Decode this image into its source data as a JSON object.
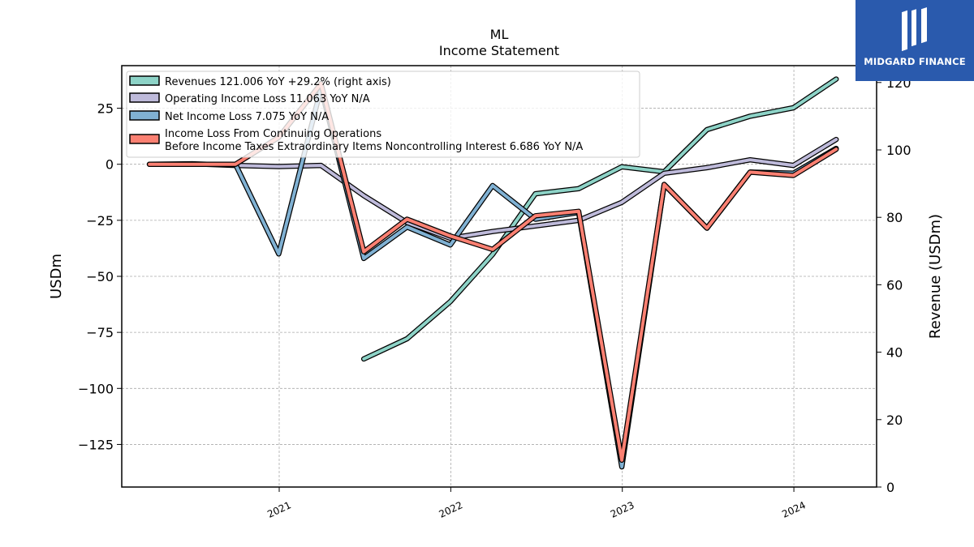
{
  "brand": {
    "name": "MIDGARD FINANCE"
  },
  "chart_data": {
    "type": "line",
    "title": "ML",
    "subtitle": "Income Statement",
    "ylabel": "USDm",
    "y2label": "Revenue (USDm)",
    "ylim": [
      -144,
      44
    ],
    "y2lim": [
      0,
      125
    ],
    "yticks": [
      25,
      0,
      -25,
      -50,
      -75,
      -100,
      -125
    ],
    "ytick_labels": [
      "25",
      "0",
      "−25",
      "−50",
      "−75",
      "−100",
      "−125"
    ],
    "y2ticks": [
      0,
      20,
      40,
      60,
      80,
      100,
      120
    ],
    "y2tick_labels": [
      "0",
      "20",
      "40",
      "60",
      "80",
      "100",
      "120"
    ],
    "xlim": [
      "2020-02-01",
      "2024-06-25"
    ],
    "xticks": [
      "2021-01-01",
      "2022-01-01",
      "2023-01-01",
      "2024-01-01"
    ],
    "xtick_labels": [
      "2021",
      "2022",
      "2023",
      "2024"
    ],
    "grid": true,
    "legend_position": "top-left",
    "series": [
      {
        "name": "Revenues  121.006 YoY +29.2% (right axis)",
        "axis": "right",
        "color": "#8dd3c7",
        "points": [
          [
            "2021-06-30",
            38
          ],
          [
            "2021-09-30",
            44
          ],
          [
            "2021-12-31",
            55
          ],
          [
            "2022-03-31",
            69
          ],
          [
            "2022-06-30",
            87
          ],
          [
            "2022-09-30",
            88.5
          ],
          [
            "2022-12-31",
            95
          ],
          [
            "2023-03-31",
            93.5
          ],
          [
            "2023-06-30",
            106
          ],
          [
            "2023-09-30",
            110
          ],
          [
            "2023-12-31",
            112.5
          ],
          [
            "2024-03-31",
            121
          ]
        ]
      },
      {
        "name": "Operating Income Loss  11.063 YoY N/A",
        "axis": "left",
        "color": "#bebada",
        "points": [
          [
            "2020-03-31",
            0
          ],
          [
            "2020-06-30",
            0.2
          ],
          [
            "2020-09-30",
            -0.5
          ],
          [
            "2020-12-31",
            -1
          ],
          [
            "2021-03-31",
            -0.5
          ],
          [
            "2021-06-30",
            -14
          ],
          [
            "2021-09-30",
            -26
          ],
          [
            "2021-12-31",
            -33
          ],
          [
            "2022-03-31",
            -30
          ],
          [
            "2022-06-30",
            -27.5
          ],
          [
            "2022-09-30",
            -25
          ],
          [
            "2022-12-31",
            -17
          ],
          [
            "2023-03-31",
            -4
          ],
          [
            "2023-06-30",
            -1.5
          ],
          [
            "2023-09-30",
            2
          ],
          [
            "2023-12-31",
            -0.5
          ],
          [
            "2024-03-31",
            11.063
          ]
        ]
      },
      {
        "name": "Net Income Loss  7.075 YoY N/A",
        "axis": "left",
        "color": "#80b1d3",
        "points": [
          [
            "2020-03-31",
            0
          ],
          [
            "2020-06-30",
            0
          ],
          [
            "2020-09-30",
            0
          ],
          [
            "2020-12-31",
            -40
          ],
          [
            "2021-03-31",
            34
          ],
          [
            "2021-06-30",
            -42
          ],
          [
            "2021-09-30",
            -28
          ],
          [
            "2021-12-31",
            -36
          ],
          [
            "2022-03-31",
            -9.5
          ],
          [
            "2022-06-30",
            -24.5
          ],
          [
            "2022-09-30",
            -21.5
          ],
          [
            "2022-12-31",
            -135
          ],
          [
            "2023-03-31",
            -9
          ],
          [
            "2023-06-30",
            -28.5
          ],
          [
            "2023-09-30",
            -3.5
          ],
          [
            "2023-12-31",
            -4
          ],
          [
            "2024-03-31",
            7.075
          ]
        ]
      },
      {
        "name": "Income Loss From Continuing Operations\nBefore Income Taxes Extraordinary Items Noncontrolling Interest  6.686 YoY N/A",
        "axis": "left",
        "color": "#fb8072",
        "points": [
          [
            "2020-03-31",
            0
          ],
          [
            "2020-06-30",
            0
          ],
          [
            "2020-09-30",
            0
          ],
          [
            "2020-12-31",
            12
          ],
          [
            "2021-03-31",
            36
          ],
          [
            "2021-06-30",
            -39
          ],
          [
            "2021-09-30",
            -24.5
          ],
          [
            "2021-12-31",
            -32
          ],
          [
            "2022-03-31",
            -38
          ],
          [
            "2022-06-30",
            -23
          ],
          [
            "2022-09-30",
            -21
          ],
          [
            "2022-12-31",
            -132
          ],
          [
            "2023-03-31",
            -9
          ],
          [
            "2023-06-30",
            -28.5
          ],
          [
            "2023-09-30",
            -3.5
          ],
          [
            "2023-12-31",
            -5
          ],
          [
            "2024-03-31",
            6.686
          ]
        ]
      }
    ]
  }
}
